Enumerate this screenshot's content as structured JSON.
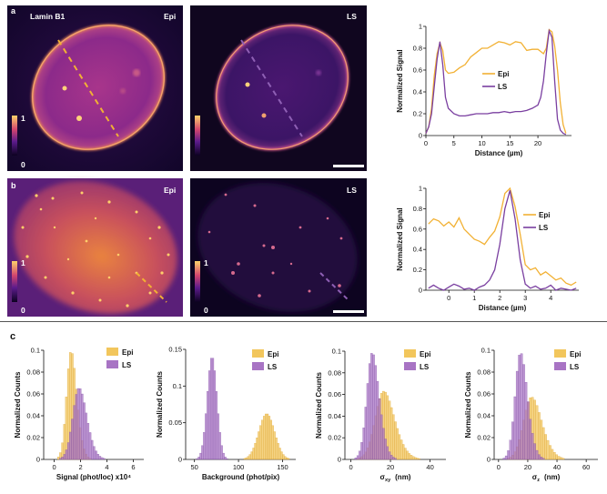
{
  "colors": {
    "epi": "#f2b134",
    "ls": "#7a3fa0",
    "epi_hist": "#f2c65c",
    "ls_hist": "#a874c4",
    "scale_bar": "#ffffff"
  },
  "panel_a": {
    "letter": "a",
    "stain_label": "Lamin B1",
    "epi_label": "Epi",
    "ls_label": "LS",
    "colorbar_max": "1",
    "colorbar_min": "0"
  },
  "panel_b": {
    "letter": "b",
    "epi_label": "Epi",
    "ls_label": "LS",
    "colorbar_max": "1",
    "colorbar_min": "0"
  },
  "panel_c": {
    "letter": "c"
  },
  "chart_data": [
    {
      "id": "profile_a",
      "type": "line",
      "xlabel": "Distance (µm)",
      "ylabel": "Normalized Signal",
      "xlim": [
        0,
        26
      ],
      "ylim": [
        0,
        1
      ],
      "xticks": [
        "0",
        "5",
        "10",
        "15",
        "20"
      ],
      "yticks": [
        "0",
        "0.2",
        "0.4",
        "0.6",
        "0.8",
        "1"
      ],
      "legend": [
        "Epi",
        "LS"
      ],
      "series": [
        {
          "name": "Epi",
          "x": [
            0,
            0.5,
            1,
            1.5,
            2,
            2.5,
            3,
            3.5,
            4,
            5,
            6,
            7,
            8,
            9,
            10,
            11,
            12,
            13,
            14,
            15,
            16,
            17,
            18,
            19,
            20,
            20.5,
            21,
            21.5,
            22,
            22.5,
            23,
            23.5,
            24,
            24.5,
            25
          ],
          "y": [
            0.02,
            0.08,
            0.25,
            0.55,
            0.75,
            0.85,
            0.78,
            0.6,
            0.57,
            0.58,
            0.62,
            0.65,
            0.72,
            0.76,
            0.8,
            0.8,
            0.83,
            0.86,
            0.85,
            0.83,
            0.86,
            0.85,
            0.78,
            0.79,
            0.79,
            0.77,
            0.75,
            0.8,
            0.97,
            0.95,
            0.82,
            0.6,
            0.3,
            0.1,
            0.02
          ]
        },
        {
          "name": "LS",
          "x": [
            0,
            0.5,
            1,
            1.5,
            2,
            2.5,
            3,
            3.5,
            4,
            5,
            6,
            7,
            8,
            9,
            10,
            11,
            12,
            13,
            14,
            15,
            16,
            17,
            18,
            19,
            20,
            20.5,
            21,
            21.5,
            22,
            22.5,
            23,
            23.5,
            24,
            24.5,
            25
          ],
          "y": [
            0.02,
            0.08,
            0.2,
            0.45,
            0.7,
            0.86,
            0.65,
            0.35,
            0.25,
            0.2,
            0.18,
            0.18,
            0.19,
            0.2,
            0.2,
            0.2,
            0.21,
            0.21,
            0.22,
            0.21,
            0.22,
            0.22,
            0.23,
            0.25,
            0.28,
            0.35,
            0.5,
            0.75,
            0.96,
            0.9,
            0.5,
            0.15,
            0.05,
            0.02,
            0.01
          ]
        }
      ]
    },
    {
      "id": "profile_b",
      "type": "line",
      "xlabel": "Distance (µm)",
      "ylabel": "Normalized Signal",
      "xlim": [
        -0.9,
        5.1
      ],
      "ylim": [
        0,
        1
      ],
      "xticks": [
        "0",
        "1",
        "2",
        "3",
        "4"
      ],
      "yticks": [
        "0",
        "0.2",
        "0.4",
        "0.6",
        "0.8",
        "1"
      ],
      "legend": [
        "Epi",
        "LS"
      ],
      "series": [
        {
          "name": "Epi",
          "x": [
            -0.8,
            -0.6,
            -0.4,
            -0.2,
            0,
            0.2,
            0.4,
            0.6,
            0.8,
            1.0,
            1.2,
            1.4,
            1.6,
            1.8,
            2.0,
            2.2,
            2.4,
            2.6,
            2.8,
            3.0,
            3.2,
            3.4,
            3.6,
            3.8,
            4.0,
            4.2,
            4.4,
            4.6,
            4.8,
            5.0
          ],
          "y": [
            0.65,
            0.7,
            0.68,
            0.63,
            0.67,
            0.62,
            0.71,
            0.6,
            0.55,
            0.5,
            0.48,
            0.45,
            0.52,
            0.58,
            0.72,
            0.95,
            1.0,
            0.82,
            0.55,
            0.25,
            0.2,
            0.22,
            0.15,
            0.18,
            0.14,
            0.1,
            0.12,
            0.07,
            0.05,
            0.08
          ]
        },
        {
          "name": "LS",
          "x": [
            -0.8,
            -0.6,
            -0.4,
            -0.2,
            0,
            0.2,
            0.4,
            0.6,
            0.8,
            1.0,
            1.2,
            1.4,
            1.6,
            1.8,
            2.0,
            2.2,
            2.4,
            2.6,
            2.8,
            3.0,
            3.2,
            3.4,
            3.6,
            3.8,
            4.0,
            4.2,
            4.4,
            4.6,
            4.8,
            5.0
          ],
          "y": [
            0.02,
            0.05,
            0.02,
            0.0,
            0.03,
            0.06,
            0.04,
            0.01,
            0.02,
            0.0,
            0.03,
            0.05,
            0.1,
            0.2,
            0.45,
            0.8,
            0.98,
            0.7,
            0.3,
            0.06,
            0.02,
            0.04,
            0.01,
            0.02,
            0.05,
            0.0,
            0.02,
            0.01,
            0.0,
            0.02
          ]
        }
      ]
    },
    {
      "id": "hist_signal",
      "type": "histogram",
      "xlabel": "Signal (phot/loc) x10⁴",
      "ylabel": "Normalized Counts",
      "xlim": [
        -0.8,
        6.8
      ],
      "ylim": [
        0,
        0.1
      ],
      "xticks": [
        "0",
        "2",
        "4",
        "6"
      ],
      "yticks": [
        "0",
        "0.02",
        "0.04",
        "0.06",
        "0.08",
        "0.1"
      ],
      "legend": [
        "Epi",
        "LS"
      ],
      "bin_width": 0.15,
      "series": [
        {
          "name": "Epi",
          "mean": 1.0,
          "sd": 0.55,
          "skew": 1.6,
          "peak": 0.098
        },
        {
          "name": "LS",
          "mean": 1.5,
          "sd": 0.75,
          "skew": 1.5,
          "peak": 0.065
        }
      ]
    },
    {
      "id": "hist_background",
      "type": "histogram",
      "xlabel": "Background (phot/pix)",
      "ylabel": "Normalized Counts",
      "xlim": [
        40,
        165
      ],
      "ylim": [
        0,
        0.15
      ],
      "xticks": [
        "50",
        "100",
        "150"
      ],
      "yticks": [
        "0",
        "0.05",
        "0.1",
        "0.15"
      ],
      "legend": [
        "Epi",
        "LS"
      ],
      "bin_width": 2,
      "series": [
        {
          "name": "Epi",
          "mean": 132,
          "sd": 9,
          "skew": 0,
          "peak": 0.062
        },
        {
          "name": "LS",
          "mean": 70,
          "sd": 5.5,
          "skew": 0,
          "peak": 0.138
        }
      ]
    },
    {
      "id": "hist_sigma_xy",
      "type": "histogram",
      "xlabel": "σ",
      "xlabel_sub": "xy",
      "xlabel_unit": "(nm)",
      "ylabel": "Normalized Counts",
      "xlim": [
        -3,
        48
      ],
      "ylim": [
        0,
        0.1
      ],
      "xticks": [
        "0",
        "20",
        "40"
      ],
      "yticks": [
        "0",
        "0.02",
        "0.04",
        "0.06",
        "0.08",
        "0.1"
      ],
      "legend": [
        "Epi",
        "LS"
      ],
      "bin_width": 1,
      "series": [
        {
          "name": "Epi",
          "mean": 13,
          "sd": 7,
          "skew": 1.6,
          "peak": 0.063
        },
        {
          "name": "LS",
          "mean": 8.5,
          "sd": 4.5,
          "skew": 1.6,
          "peak": 0.098
        }
      ]
    },
    {
      "id": "hist_sigma_z",
      "type": "histogram",
      "xlabel": "σ",
      "xlabel_sub": "z",
      "xlabel_unit": "(nm)",
      "ylabel": "Normalized Counts",
      "xlim": [
        -3,
        68
      ],
      "ylim": [
        0,
        0.1
      ],
      "xticks": [
        "0",
        "20",
        "40",
        "60"
      ],
      "yticks": [
        "0",
        "0.02",
        "0.04",
        "0.06",
        "0.08",
        "0.1"
      ],
      "legend": [
        "Epi",
        "LS"
      ],
      "bin_width": 1.5,
      "series": [
        {
          "name": "Epi",
          "mean": 18,
          "sd": 9,
          "skew": 1.6,
          "peak": 0.057
        },
        {
          "name": "LS",
          "mean": 12,
          "sd": 6,
          "skew": 1.6,
          "peak": 0.097
        }
      ]
    }
  ]
}
